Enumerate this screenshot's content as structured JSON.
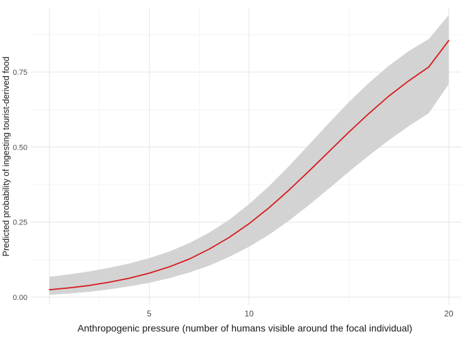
{
  "chart_data": {
    "type": "line",
    "title": "",
    "xlabel": "Anthropogenic pressure (number of humans visible around the focal individual)",
    "ylabel": "Predicted probability of ingesting tourist-derived food",
    "xlim": [
      0,
      20
    ],
    "ylim": [
      0,
      0.95
    ],
    "x_ticks": [
      5,
      10,
      20
    ],
    "x_tick_labels": [
      "5",
      "10",
      "20"
    ],
    "y_ticks": [
      0,
      0.25,
      0.5,
      0.75
    ],
    "y_tick_labels": [
      "0.00",
      "0.25",
      "0.50",
      "0.75"
    ],
    "grid": true,
    "line_color": "#d7191c",
    "ribbon_color": "#d3d3d3",
    "series": [
      {
        "x": [
          0,
          1,
          2,
          3,
          4,
          5,
          6,
          7,
          8,
          9,
          10,
          11,
          12,
          13,
          14,
          15,
          16,
          17,
          18,
          19,
          20
        ],
        "y": [
          0.025,
          0.031,
          0.039,
          0.05,
          0.063,
          0.08,
          0.101,
          0.127,
          0.16,
          0.199,
          0.245,
          0.298,
          0.357,
          0.42,
          0.485,
          0.55,
          0.612,
          0.67,
          0.721,
          0.767,
          0.855
        ],
        "lower": [
          0.008,
          0.012,
          0.018,
          0.026,
          0.036,
          0.048,
          0.063,
          0.082,
          0.105,
          0.134,
          0.168,
          0.208,
          0.255,
          0.307,
          0.362,
          0.418,
          0.472,
          0.523,
          0.57,
          0.613,
          0.71
        ],
        "upper": [
          0.068,
          0.076,
          0.086,
          0.098,
          0.112,
          0.13,
          0.152,
          0.18,
          0.215,
          0.258,
          0.31,
          0.37,
          0.437,
          0.508,
          0.58,
          0.65,
          0.714,
          0.771,
          0.82,
          0.86,
          0.94
        ]
      }
    ]
  }
}
